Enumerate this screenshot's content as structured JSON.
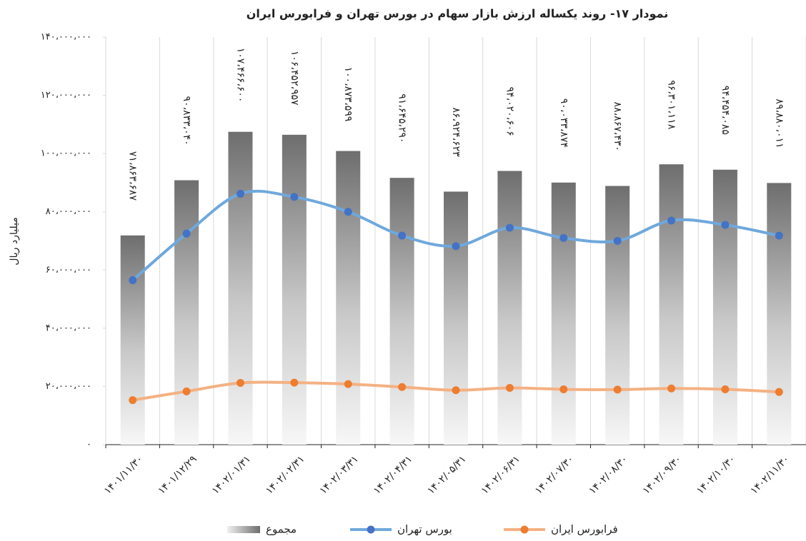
{
  "chart_data": {
    "type": "bar",
    "title": "نمودار ۱۷- روند یکساله ارزش بازار سهام در بورس تهران و فرابورس ایران",
    "y_label": "میلیارد ریال",
    "categories": [
      "۱۴۰۱/۱۱/۳۰",
      "۱۴۰۱/۱۲/۲۹",
      "۱۴۰۲/۰۱/۳۱",
      "۱۴۰۲/۰۲/۳۱",
      "۱۴۰۲/۰۳/۳۱",
      "۱۴۰۲/۰۴/۳۱",
      "۱۴۰۲/۰۵/۳۱",
      "۱۴۰۲/۰۶/۳۱",
      "۱۴۰۲/۰۷/۳۰",
      "۱۴۰۲/۰۸/۳۰",
      "۱۴۰۲/۰۹/۳۰",
      "۱۴۰۲/۱۰/۳۰",
      "۱۴۰۲/۱۱/۳۰"
    ],
    "series": [
      {
        "name": "مجموع",
        "type": "bar",
        "color": "#7a7a7a",
        "values": [
          71863687,
          90833040,
          107466600,
          106452957,
          100873599,
          91645290,
          86924623,
          94020606,
          90033874,
          88867430,
          96301118,
          94454085,
          89880011
        ],
        "value_labels": [
          "۷۱،۸۶۳،۶۸۷",
          "۹۰،۸۳۳،۰۴۰",
          "۱۰۷،۴۶۶،۶۰۰",
          "۱۰۶،۴۵۲،۹۵۷",
          "۱۰۰،۸۷۳،۵۹۹",
          "۹۱،۶۴۵،۲۹۰",
          "۸۶،۹۲۴،۶۲۳",
          "۹۴،۰۲۰،۶۰۶",
          "۹۰،۰۳۳،۸۷۴",
          "۸۸،۸۶۷،۴۳۰",
          "۹۶،۳۰۱،۱۱۸",
          "۹۴،۴۵۴،۰۸۵",
          "۸۹،۸۸۰،۰۱۱"
        ]
      },
      {
        "name": "بورس تهران",
        "type": "line",
        "color": "#6fa8dc",
        "marker_color": "#4472c4",
        "values": [
          56500000,
          72500000,
          86200000,
          85100000,
          80000000,
          71800000,
          68200000,
          74500000,
          71000000,
          70000000,
          77000000,
          75500000,
          71800000
        ]
      },
      {
        "name": "فرابورس ایران",
        "type": "line",
        "color": "#f4b183",
        "marker_color": "#ed7d31",
        "values": [
          15300000,
          18300000,
          21200000,
          21300000,
          20800000,
          19800000,
          18700000,
          19500000,
          19000000,
          18900000,
          19300000,
          19000000,
          18100000
        ]
      }
    ],
    "ylim": [
      0,
      140000000
    ],
    "yticks": [
      {
        "value": 0,
        "label": "۰"
      },
      {
        "value": 20000000,
        "label": "۲۰،۰۰۰،۰۰۰"
      },
      {
        "value": 40000000,
        "label": "۴۰،۰۰۰،۰۰۰"
      },
      {
        "value": 60000000,
        "label": "۶۰،۰۰۰،۰۰۰"
      },
      {
        "value": 80000000,
        "label": "۸۰،۰۰۰،۰۰۰"
      },
      {
        "value": 100000000,
        "label": "۱۰۰،۰۰۰،۰۰۰"
      },
      {
        "value": 120000000,
        "label": "۱۲۰،۰۰۰،۰۰۰"
      },
      {
        "value": 140000000,
        "label": "۱۴۰،۰۰۰،۰۰۰"
      }
    ],
    "legend": "bottom"
  }
}
